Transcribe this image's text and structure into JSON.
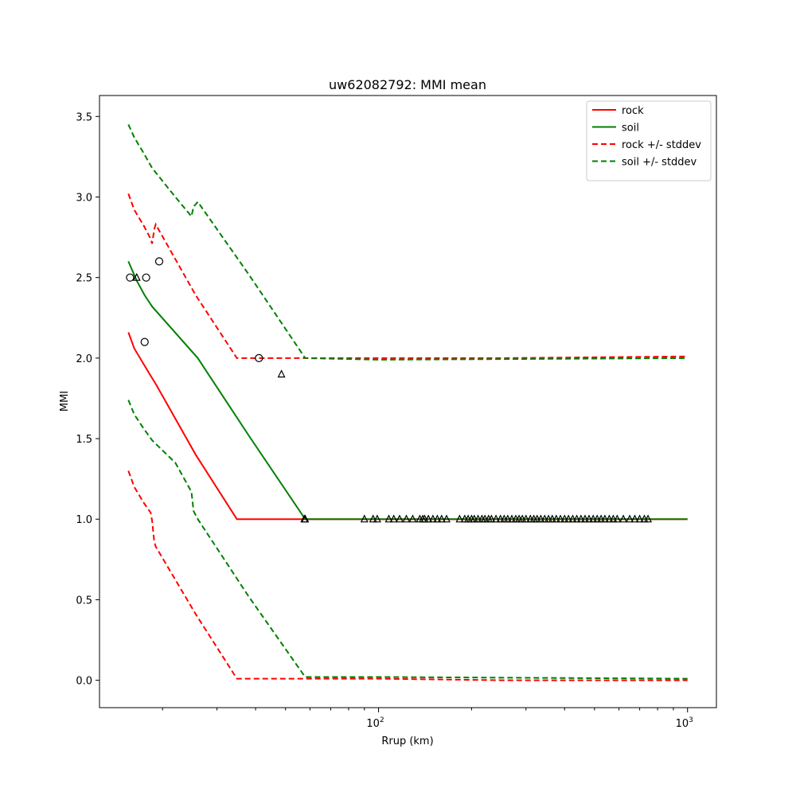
{
  "chart_data": {
    "type": "line",
    "title": "uw62082792: MMI mean",
    "xlabel": "Rrup (km)",
    "ylabel": "MMI",
    "xscale": "log",
    "xlim": [
      12.5,
      1240
    ],
    "ylim": [
      -0.17,
      3.63
    ],
    "grid": false,
    "legend_position": "top-right",
    "x_ticks": [
      {
        "value": 100,
        "base": "10",
        "exp": "2"
      },
      {
        "value": 1000,
        "base": "10",
        "exp": "3"
      }
    ],
    "y_ticks": [
      {
        "value": 0.0,
        "label": "0.0"
      },
      {
        "value": 0.5,
        "label": "0.5"
      },
      {
        "value": 1.0,
        "label": "1.0"
      },
      {
        "value": 1.5,
        "label": "1.5"
      },
      {
        "value": 2.0,
        "label": "2.0"
      },
      {
        "value": 2.5,
        "label": "2.5"
      },
      {
        "value": 3.0,
        "label": "3.0"
      },
      {
        "value": 3.5,
        "label": "3.5"
      }
    ],
    "series": [
      {
        "name": "rock",
        "color": "#ff0000",
        "dash": "solid",
        "x": [
          15.5,
          16.2,
          17.4,
          18.3,
          19.0,
          25.6,
          34.8,
          1000
        ],
        "y": [
          2.16,
          2.06,
          1.96,
          1.89,
          1.84,
          1.4,
          1.0,
          1.0
        ]
      },
      {
        "name": "soil",
        "color": "#008000",
        "dash": "solid",
        "x": [
          15.5,
          16.5,
          17.5,
          18.5,
          26.0,
          38.0,
          57.9,
          1000
        ],
        "y": [
          2.6,
          2.48,
          2.39,
          2.32,
          2.0,
          1.52,
          1.0,
          1.0
        ]
      },
      {
        "name": "rock +/- stddev",
        "color": "#ff0000",
        "dash": "dashed",
        "x": [
          15.5,
          16.2,
          17.4,
          18.3,
          18.5,
          18.8,
          19.0,
          25.6,
          34.8,
          100,
          250,
          1000
        ],
        "y": [
          3.02,
          2.92,
          2.82,
          2.74,
          2.71,
          2.8,
          2.83,
          2.39,
          2.0,
          2.0,
          2.0,
          2.01
        ]
      },
      {
        "color": "#ff0000",
        "dash": "dashed",
        "x": [
          15.5,
          16.2,
          17.4,
          18.3,
          18.5,
          18.8,
          19.0,
          25.6,
          34.8,
          100,
          250,
          1000
        ],
        "y": [
          1.3,
          1.2,
          1.1,
          1.04,
          0.99,
          0.86,
          0.83,
          0.41,
          0.01,
          0.01,
          0.0,
          0.0
        ]
      },
      {
        "name": "soil +/- stddev",
        "color": "#008000",
        "dash": "dashed",
        "x": [
          15.5,
          16.2,
          17.4,
          18.5,
          22.0,
          24.8,
          25.2,
          26.0,
          38.0,
          57.9,
          100,
          1000
        ],
        "y": [
          3.45,
          3.37,
          3.27,
          3.18,
          3.0,
          2.88,
          2.94,
          2.97,
          2.52,
          2.0,
          1.99,
          2.0
        ]
      },
      {
        "color": "#008000",
        "dash": "dashed",
        "x": [
          15.5,
          16.2,
          17.4,
          18.5,
          22.0,
          24.8,
          25.2,
          26.0,
          38.0,
          57.9,
          100,
          1000
        ],
        "y": [
          1.74,
          1.65,
          1.56,
          1.49,
          1.35,
          1.17,
          1.05,
          1.0,
          0.52,
          0.02,
          0.02,
          0.01
        ]
      }
    ],
    "observations_circle": {
      "x": [
        15.7,
        17.7,
        17.5,
        19.5,
        41.0
      ],
      "y": [
        2.5,
        2.5,
        2.1,
        2.6,
        2.0
      ]
    },
    "observations_triangle": {
      "x": [
        16.5,
        48.5,
        57.5,
        57.9,
        90,
        96,
        99,
        108,
        112,
        117,
        123,
        129,
        136,
        139,
        141,
        145,
        150,
        155,
        160,
        166,
        183,
        190,
        195,
        200,
        204,
        210,
        216,
        221,
        227,
        232,
        240,
        248,
        255,
        262,
        270,
        278,
        285,
        292,
        300,
        310,
        318,
        326,
        335,
        345,
        355,
        365,
        376,
        388,
        400,
        412,
        425,
        438,
        452,
        466,
        480,
        495,
        510,
        525,
        540,
        558,
        575,
        592,
        620,
        650,
        675,
        700,
        725,
        745
      ],
      "y": [
        2.5,
        1.9,
        1.0,
        1.0,
        1.0,
        1.0,
        1.0,
        1.0,
        1.0,
        1.0,
        1.0,
        1.0,
        1.0,
        1.0,
        1.0,
        1.0,
        1.0,
        1.0,
        1.0,
        1.0,
        1.0,
        1.0,
        1.0,
        1.0,
        1.0,
        1.0,
        1.0,
        1.0,
        1.0,
        1.0,
        1.0,
        1.0,
        1.0,
        1.0,
        1.0,
        1.0,
        1.0,
        1.0,
        1.0,
        1.0,
        1.0,
        1.0,
        1.0,
        1.0,
        1.0,
        1.0,
        1.0,
        1.0,
        1.0,
        1.0,
        1.0,
        1.0,
        1.0,
        1.0,
        1.0,
        1.0,
        1.0,
        1.0,
        1.0,
        1.0,
        1.0,
        1.0,
        1.0,
        1.0,
        1.0,
        1.0,
        1.0,
        1.0
      ]
    }
  }
}
